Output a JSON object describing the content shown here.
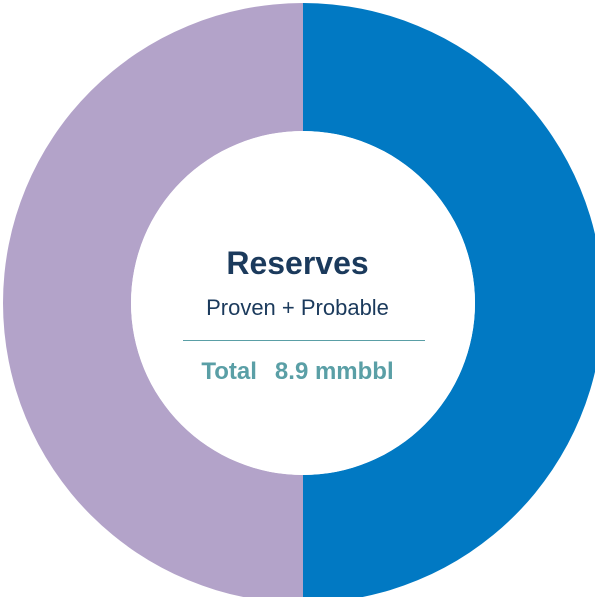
{
  "chart_data": {
    "type": "pie",
    "categories": [
      "",
      ""
    ],
    "values": [
      50,
      50
    ],
    "colors": [
      "#0179c3",
      "#b3a3c9"
    ],
    "hole": true,
    "title": "Reserves",
    "subtitle": "Proven + Probable",
    "total_label": "Total",
    "total_value": "8.9 mmbbl"
  }
}
